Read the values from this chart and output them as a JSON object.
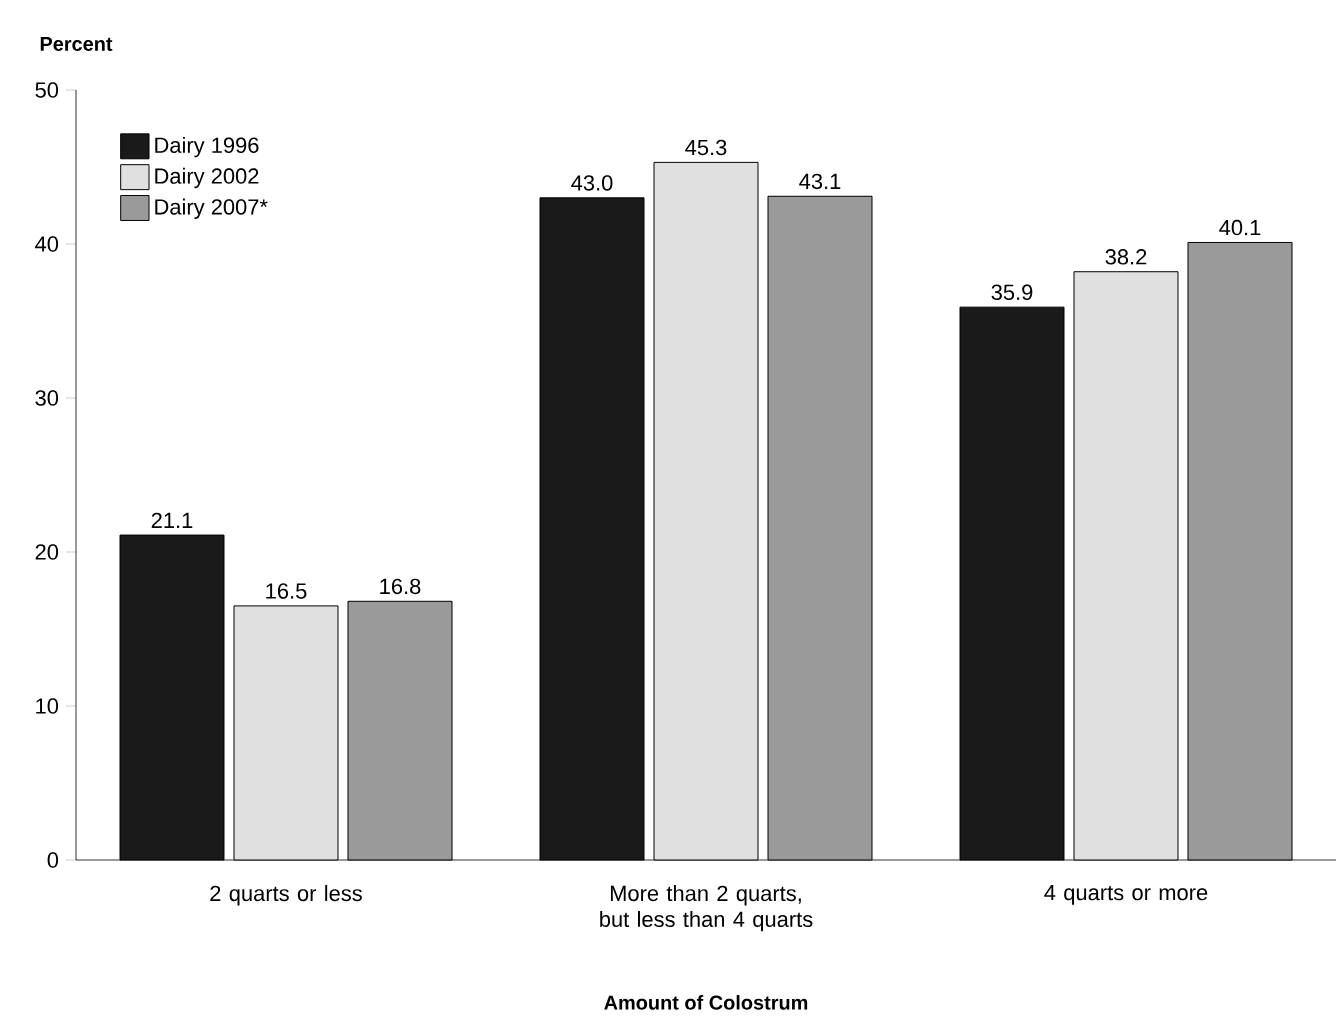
{
  "chart_data": {
    "type": "bar",
    "ylabel": "Percent",
    "xlabel": "Amount of Colostrum",
    "categories": [
      "2 quarts or less",
      "More than 2 quarts, but less than 4 quarts",
      "4 quarts or more"
    ],
    "series": [
      {
        "name": "Dairy 1996",
        "color": "#1a1a1a",
        "values": [
          21.1,
          43.0,
          35.9
        ],
        "value_labels": [
          "21.1",
          "43.0",
          "35.9"
        ]
      },
      {
        "name": "Dairy 2002",
        "color": "#e0e0e0",
        "values": [
          16.5,
          45.3,
          38.2
        ],
        "value_labels": [
          "16.5",
          "45.3",
          "38.2"
        ]
      },
      {
        "name": "Dairy 2007*",
        "color": "#9a9a9a",
        "values": [
          16.8,
          43.1,
          40.1
        ],
        "value_labels": [
          "16.8",
          "43.1",
          "40.1"
        ]
      }
    ],
    "ylim": [
      0,
      50
    ],
    "yticks": [
      0,
      10,
      20,
      30,
      40,
      50
    ],
    "legend": "top left",
    "grid": false
  }
}
